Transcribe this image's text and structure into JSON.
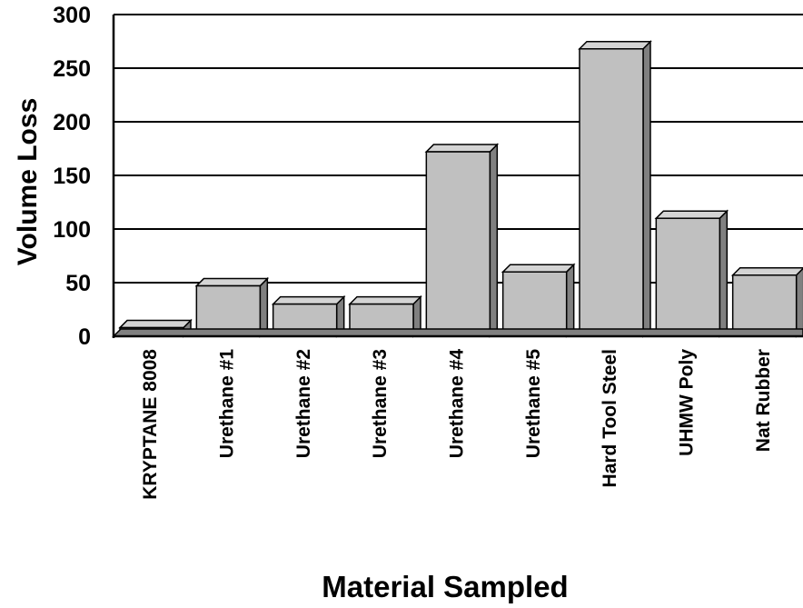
{
  "chart_data": {
    "type": "bar",
    "title": "",
    "xlabel": "Material Sampled",
    "ylabel": "Volume Loss",
    "ylim": [
      0,
      300
    ],
    "yticks": [
      0,
      50,
      100,
      150,
      200,
      250,
      300
    ],
    "grid": true,
    "legend": "none",
    "bar_color": "#c0c0c0",
    "categories": [
      "KRYPTANE 8008",
      "Urethane #1",
      "Urethane #2",
      "Urethane #3",
      "Urethane #4",
      "Urethane #5",
      "Hard Tool Steel",
      "UHMW Poly",
      "Nat Rubber"
    ],
    "values": [
      8,
      47,
      30,
      30,
      172,
      60,
      268,
      110,
      57
    ]
  }
}
